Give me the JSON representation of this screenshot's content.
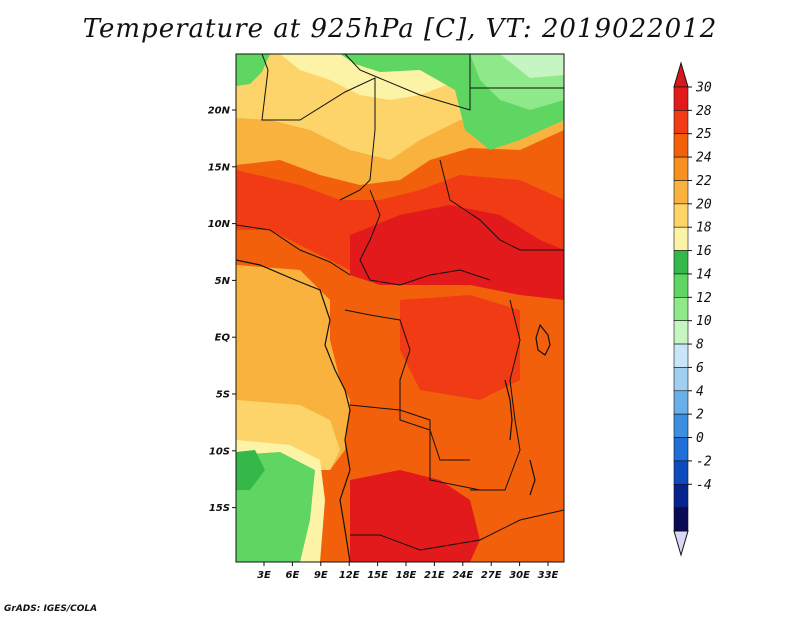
{
  "title": "Temperature at 925hPa [C], VT: 2019022012",
  "credit": "GrADS: IGES/COLA",
  "lat_labels": [
    "20N",
    "15N",
    "10N",
    "5N",
    "EQ",
    "5S",
    "10S",
    "15S"
  ],
  "lon_labels": [
    "3E",
    "6E",
    "9E",
    "12E",
    "15E",
    "18E",
    "21E",
    "24E",
    "27E",
    "30E",
    "33E"
  ],
  "colorbar": {
    "labels": [
      "30",
      "28",
      "25",
      "24",
      "22",
      "20",
      "18",
      "16",
      "14",
      "12",
      "10",
      "8",
      "6",
      "4",
      "2",
      "0",
      "-2",
      "-4"
    ],
    "colors": [
      "#e31a1c",
      "#f03b14",
      "#f2600c",
      "#f79020",
      "#f9b23e",
      "#fcd46a",
      "#fdf3a6",
      "#35b84a",
      "#5fd562",
      "#8fe889",
      "#c7f5c2",
      "#c8e6f7",
      "#9fd0f2",
      "#6ab0e8",
      "#3e8ee0",
      "#1f6fd8",
      "#0f4bbf",
      "#07238c",
      "#0b0a55"
    ],
    "top_arrow_color": "#d7191c",
    "bottom_arrow_color": "#d8d8f6"
  }
}
